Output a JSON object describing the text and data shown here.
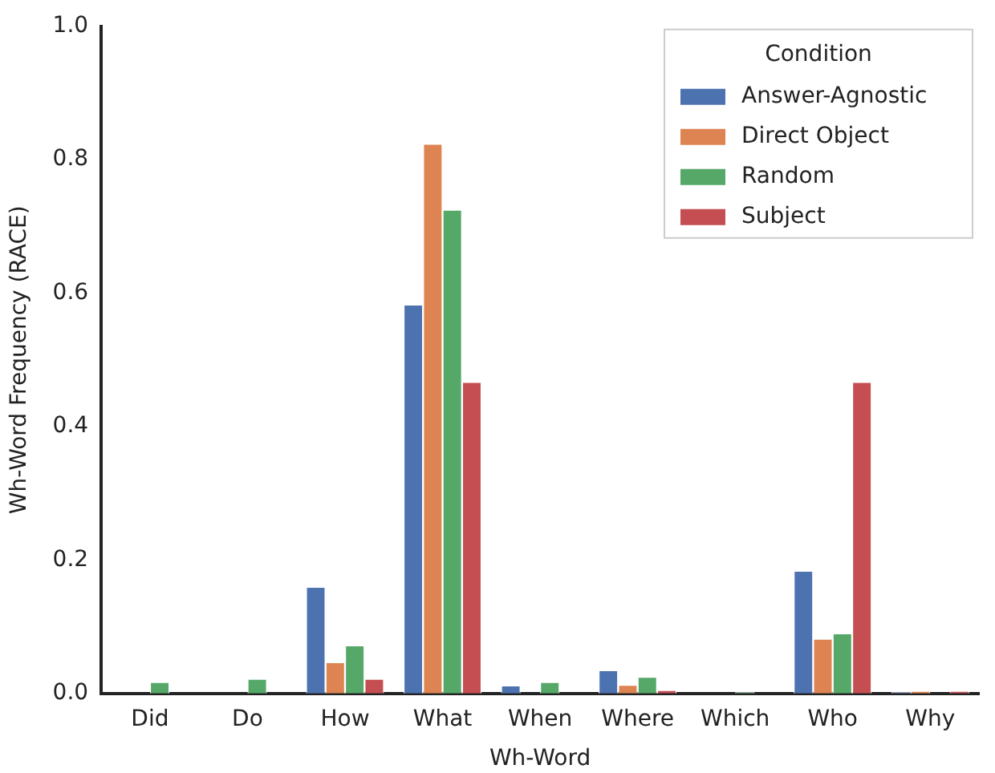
{
  "chart_data": {
    "type": "bar",
    "xlabel": "Wh-Word",
    "ylabel": "Wh-Word Frequency (RACE)",
    "legend_title": "Condition",
    "legend": "top right",
    "grid": false,
    "categories": [
      "Did",
      "Do",
      "How",
      "What",
      "When",
      "Where",
      "Which",
      "Who",
      "Why"
    ],
    "ylim": [
      0,
      1.0
    ],
    "yticks": [
      {
        "value": 0,
        "label": "0.0"
      },
      {
        "value": 0.2,
        "label": "0.2"
      },
      {
        "value": 0.4,
        "label": "0.4"
      },
      {
        "value": 0.6,
        "label": "0.6"
      },
      {
        "value": 0.8,
        "label": "0.8"
      },
      {
        "value": 1.0,
        "label": "1.0"
      }
    ],
    "series": [
      {
        "name": "Answer-Agnostic",
        "color": "#4c72b0",
        "values": [
          0,
          0,
          0.16,
          0.583,
          0.012,
          0.035,
          0,
          0.184,
          0.002
        ]
      },
      {
        "name": "Direct Object",
        "color": "#dd8452",
        "values": [
          0,
          0,
          0.047,
          0.824,
          0,
          0.013,
          0,
          0.082,
          0.004
        ]
      },
      {
        "name": "Random",
        "color": "#55a868",
        "values": [
          0.017,
          0.022,
          0.072,
          0.725,
          0.017,
          0.025,
          0.002,
          0.09,
          0
        ]
      },
      {
        "name": "Subject",
        "color": "#c44e52",
        "values": [
          0,
          0,
          0.022,
          0.467,
          0,
          0.005,
          0,
          0.467,
          0.004
        ]
      }
    ]
  }
}
